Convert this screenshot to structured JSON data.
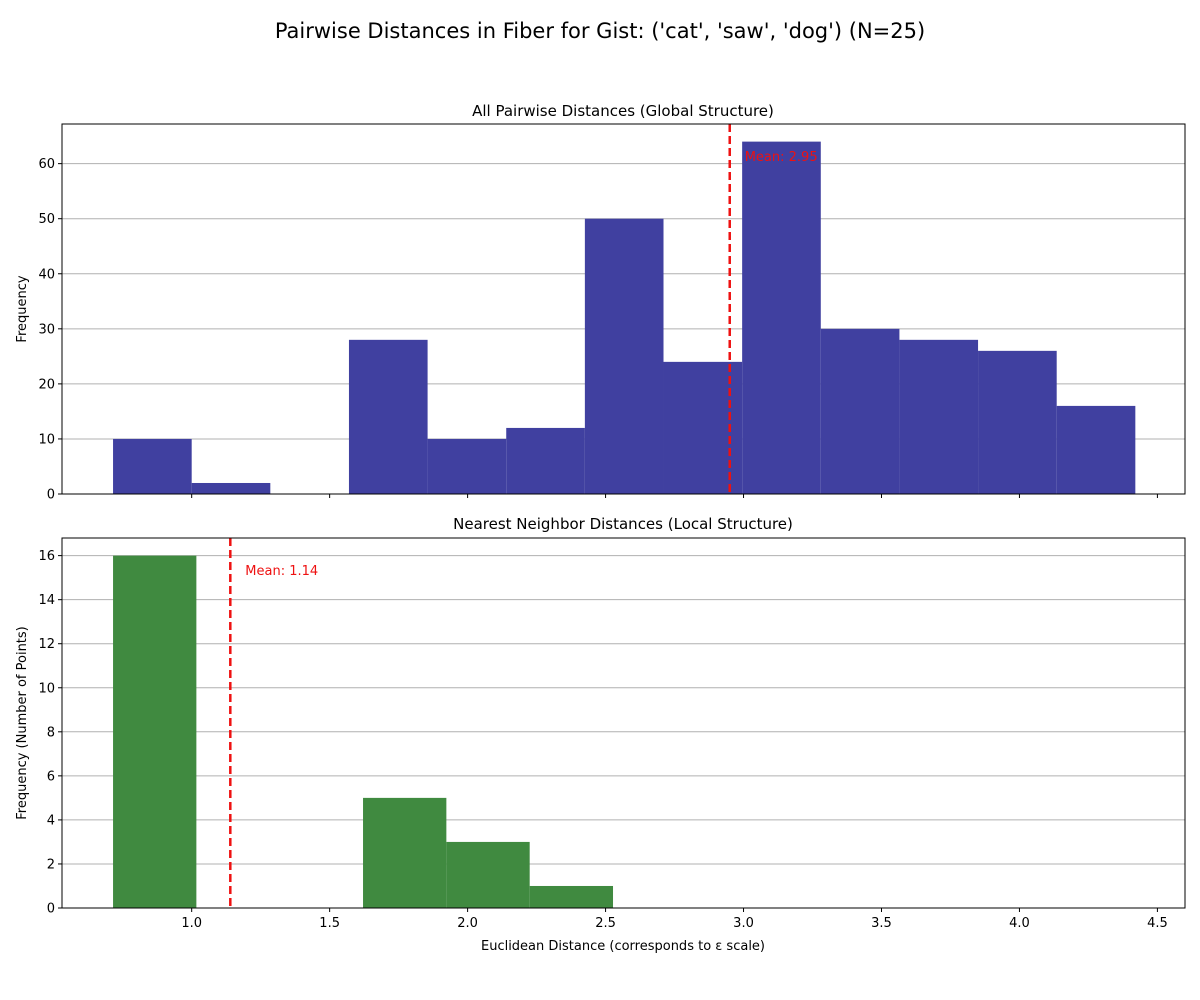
{
  "figure_title": "Pairwise Distances in Fiber for Gist: ('cat', 'saw', 'dog') (N=25)",
  "colors": {
    "global_bar": "#4040a0",
    "local_bar": "#408a40",
    "mean_line": "#ee1111",
    "grid": "#b0b0b0"
  },
  "chart_data": [
    {
      "type": "bar",
      "title": "All Pairwise Distances (Global Structure)",
      "xlabel": "",
      "ylabel": "Frequency",
      "bin_edges": [
        0.715,
        1.0,
        1.285,
        1.57,
        1.855,
        2.14,
        2.425,
        2.71,
        2.995,
        3.28,
        3.565,
        3.85,
        4.135,
        4.42
      ],
      "values": [
        10,
        2,
        0,
        28,
        10,
        12,
        50,
        24,
        64,
        30,
        28,
        26,
        16
      ],
      "xlim": [
        0.53,
        4.6
      ],
      "ylim": [
        0,
        67.2
      ],
      "xticks": [
        1.0,
        1.5,
        2.0,
        2.5,
        3.0,
        3.5,
        4.0,
        4.5
      ],
      "yticks": [
        0,
        10,
        20,
        30,
        40,
        50,
        60
      ],
      "ytick_labels": [
        "0",
        "10",
        "20",
        "30",
        "40",
        "50",
        "60"
      ],
      "show_xtick_labels": false,
      "grid": "y",
      "mean": 2.95,
      "mean_label": "Mean: 2.95"
    },
    {
      "type": "bar",
      "title": "Nearest Neighbor Distances (Local Structure)",
      "xlabel": "Euclidean Distance (corresponds to ε scale)",
      "ylabel": "Frequency (Number of Points)",
      "bin_edges": [
        0.715,
        1.017,
        1.319,
        1.621,
        1.923,
        2.225,
        2.527
      ],
      "values": [
        16,
        0,
        0,
        5,
        3,
        1
      ],
      "xlim": [
        0.53,
        4.6
      ],
      "ylim": [
        0,
        16.8
      ],
      "xticks": [
        1.0,
        1.5,
        2.0,
        2.5,
        3.0,
        3.5,
        4.0,
        4.5
      ],
      "xtick_labels": [
        "1.0",
        "1.5",
        "2.0",
        "2.5",
        "3.0",
        "3.5",
        "4.0",
        "4.5"
      ],
      "yticks": [
        0,
        2,
        4,
        6,
        8,
        10,
        12,
        14,
        16
      ],
      "ytick_labels": [
        "0",
        "2",
        "4",
        "6",
        "8",
        "10",
        "12",
        "14",
        "16"
      ],
      "show_xtick_labels": true,
      "grid": "y",
      "mean": 1.14,
      "mean_label": "Mean: 1.14"
    }
  ]
}
